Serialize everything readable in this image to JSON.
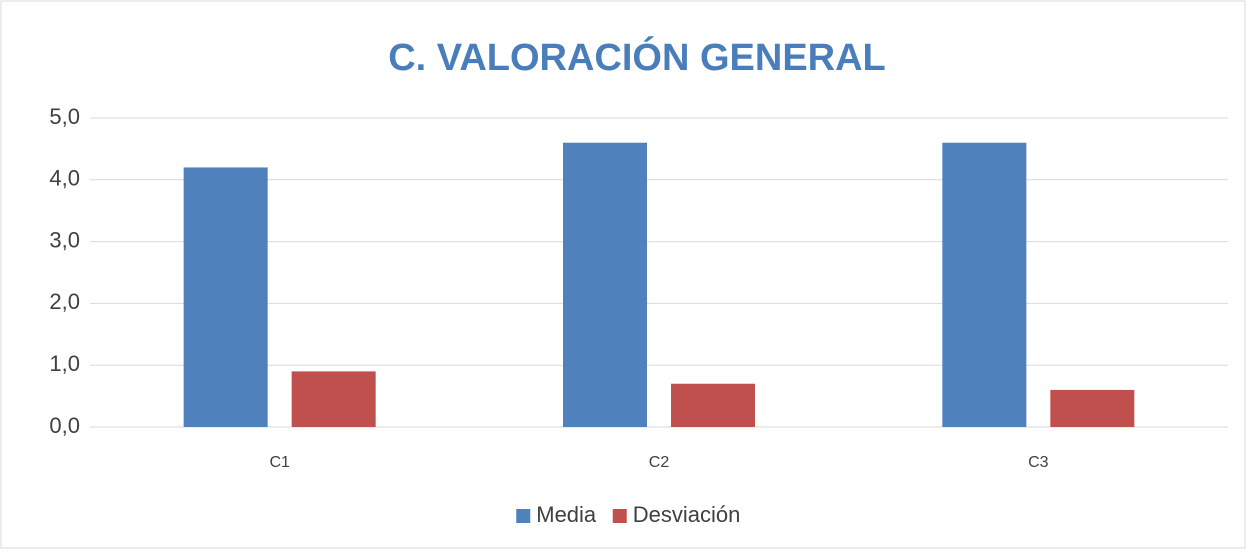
{
  "chart_data": {
    "type": "bar",
    "title": "C. VALORACIÓN GENERAL",
    "categories": [
      "C1",
      "C2",
      "C3"
    ],
    "series": [
      {
        "name": "Media",
        "color": "#4f81bd",
        "values": [
          4.2,
          4.6,
          4.6
        ]
      },
      {
        "name": "Desviación",
        "color": "#c0504d",
        "values": [
          0.9,
          0.7,
          0.6
        ]
      }
    ],
    "ylim": [
      0,
      5
    ],
    "yticks": [
      {
        "value": 0,
        "label": "0,0"
      },
      {
        "value": 1,
        "label": "1,0"
      },
      {
        "value": 2,
        "label": "2,0"
      },
      {
        "value": 3,
        "label": "3,0"
      },
      {
        "value": 4,
        "label": "4,0"
      },
      {
        "value": 5,
        "label": "5,0"
      }
    ],
    "grid": true,
    "legend": "bottom"
  }
}
